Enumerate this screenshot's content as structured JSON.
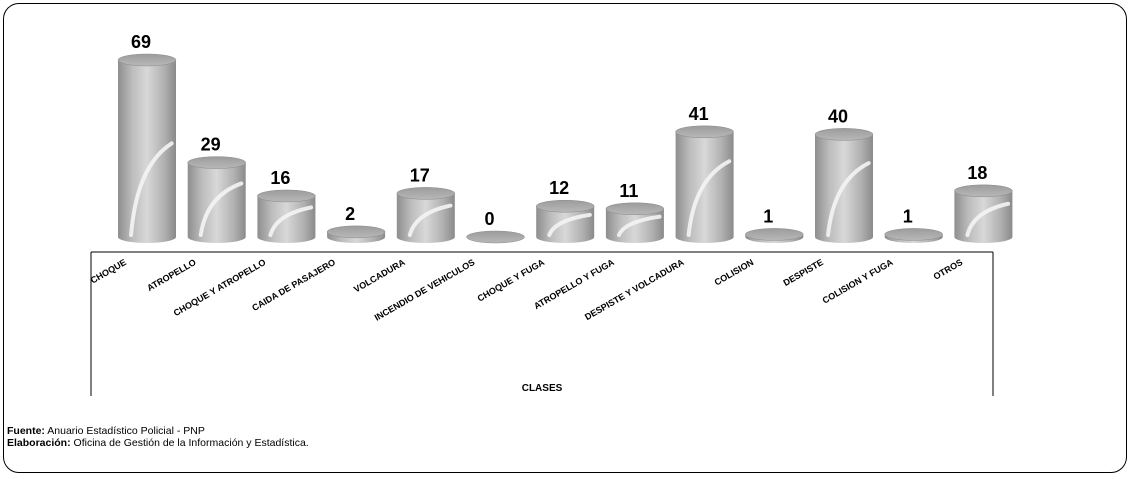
{
  "chart_data": {
    "type": "bar",
    "categories": [
      "CHOQUE",
      "ATROPELLO",
      "CHOQUE Y ATROPELLO",
      "CAIDA DE PASAJERO",
      "VOLCADURA",
      "INCENDIO DE VEHICULOS",
      "CHOQUE Y FUGA",
      "ATROPELLO Y FUGA",
      "DESPISTE Y VOLCADURA",
      "COLISION",
      "DESPISTE",
      "COLISION Y FUGA",
      "OTROS"
    ],
    "values": [
      69,
      29,
      16,
      2,
      17,
      0,
      12,
      11,
      41,
      1,
      40,
      1,
      18
    ],
    "xlabel": "CLASES",
    "ylabel": "",
    "ylim": [
      0,
      69
    ],
    "grid": false,
    "bar_style": "3d-cylinder",
    "bar_color": "#a8a8a8"
  },
  "notes": {
    "source_label": "Fuente:",
    "source_text": " Anuario Estadístico Policial - PNP",
    "credit_label": "Elaboración:",
    "credit_text": " Oficina de Gestión de la Información y Estadística."
  }
}
